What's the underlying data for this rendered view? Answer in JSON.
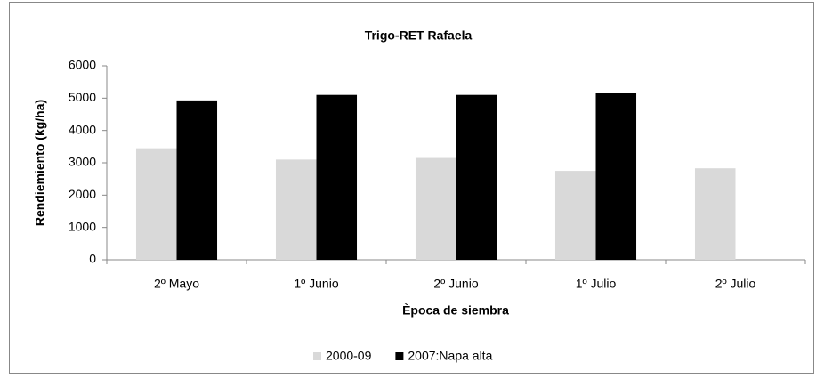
{
  "chart_data": {
    "type": "bar",
    "title": "Trigo-RET Rafaela",
    "x_label": "Època de siembra",
    "y_label": "Rendiemiento (kg/ha)",
    "categories": [
      "2º Mayo",
      "1º Junio",
      "2º Junio",
      "1º Julio",
      "2º Julio"
    ],
    "series": [
      {
        "name": "2000-09",
        "color": "#d9d9d9",
        "values": [
          3450,
          3100,
          3150,
          2750,
          2830
        ]
      },
      {
        "name": "2007:Napa alta",
        "color": "#000000",
        "values": [
          4930,
          5100,
          5100,
          5170,
          null
        ]
      }
    ],
    "ylim": [
      0,
      6000
    ],
    "yticks": [
      0,
      1000,
      2000,
      3000,
      4000,
      5000,
      6000
    ],
    "grid": false
  }
}
